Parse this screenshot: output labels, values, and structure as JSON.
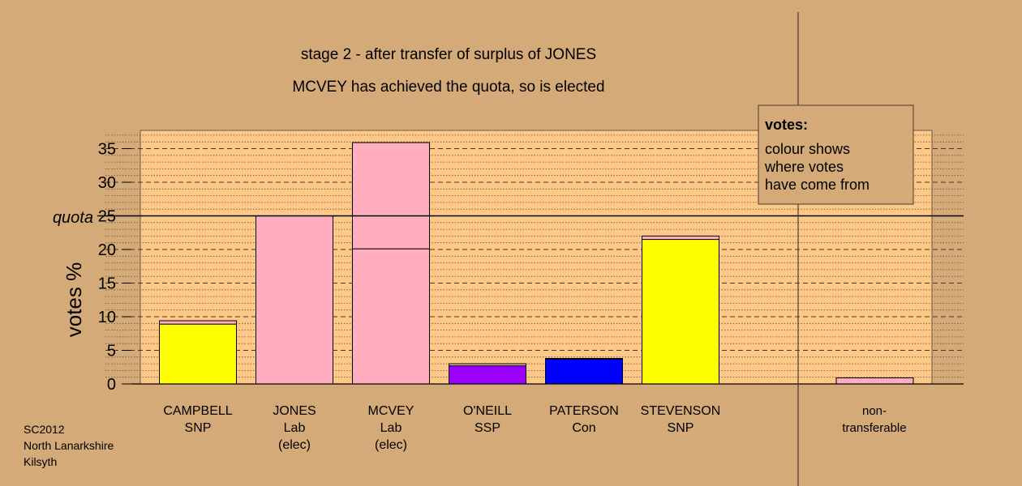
{
  "chart_data": {
    "type": "bar",
    "title": "stage 2 - after transfer of surplus of JONES",
    "subtitle": "MCVEY has achieved the quota, so is elected",
    "ylabel": "votes %",
    "ylim": [
      0,
      38
    ],
    "yticks": [
      0,
      5,
      10,
      15,
      20,
      25,
      30,
      35
    ],
    "quota": {
      "label": "quota",
      "value": 25
    },
    "candidates": [
      {
        "name": "CAMPBELL",
        "party": "SNP",
        "note": "",
        "segments": [
          {
            "value": 8.9,
            "color": "#ffff00"
          },
          {
            "value": 0.5,
            "color": "#ffaec0"
          }
        ]
      },
      {
        "name": "JONES",
        "party": "Lab",
        "note": "(elec)",
        "segments": [
          {
            "value": 25.0,
            "color": "#ffaec0"
          }
        ]
      },
      {
        "name": "MCVEY",
        "party": "Lab",
        "note": "(elec)",
        "segments": [
          {
            "value": 20.1,
            "color": "#ffaec0"
          },
          {
            "value": 15.8,
            "color": "#ffaec0"
          }
        ]
      },
      {
        "name": "O'NEILL",
        "party": "SSP",
        "note": "",
        "segments": [
          {
            "value": 2.7,
            "color": "#9900ff"
          },
          {
            "value": 0.3,
            "color": "#ffaec0"
          }
        ]
      },
      {
        "name": "PATERSON",
        "party": "Con",
        "note": "",
        "segments": [
          {
            "value": 3.7,
            "color": "#0000ff"
          },
          {
            "value": 0.1,
            "color": "#ffaec0"
          }
        ]
      },
      {
        "name": "STEVENSON",
        "party": "SNP",
        "note": "",
        "segments": [
          {
            "value": 21.5,
            "color": "#ffff00"
          },
          {
            "value": 0.5,
            "color": "#ffaec0"
          }
        ]
      }
    ],
    "nontransferable": {
      "label_line1": "non-",
      "label_line2": "transferable",
      "value": 0.9,
      "color": "#ffaec0"
    },
    "legend": {
      "title": "votes:",
      "lines": [
        "colour shows",
        "where votes",
        "have come from"
      ],
      "placement": "top-right"
    },
    "grid": true
  },
  "footer": {
    "lines": [
      "SC2012",
      "North Lanarkshire",
      "Kilsyth"
    ]
  },
  "colors": {
    "background": "#d4aa78",
    "plot_area": "#fdc888",
    "axis": "#000000"
  }
}
